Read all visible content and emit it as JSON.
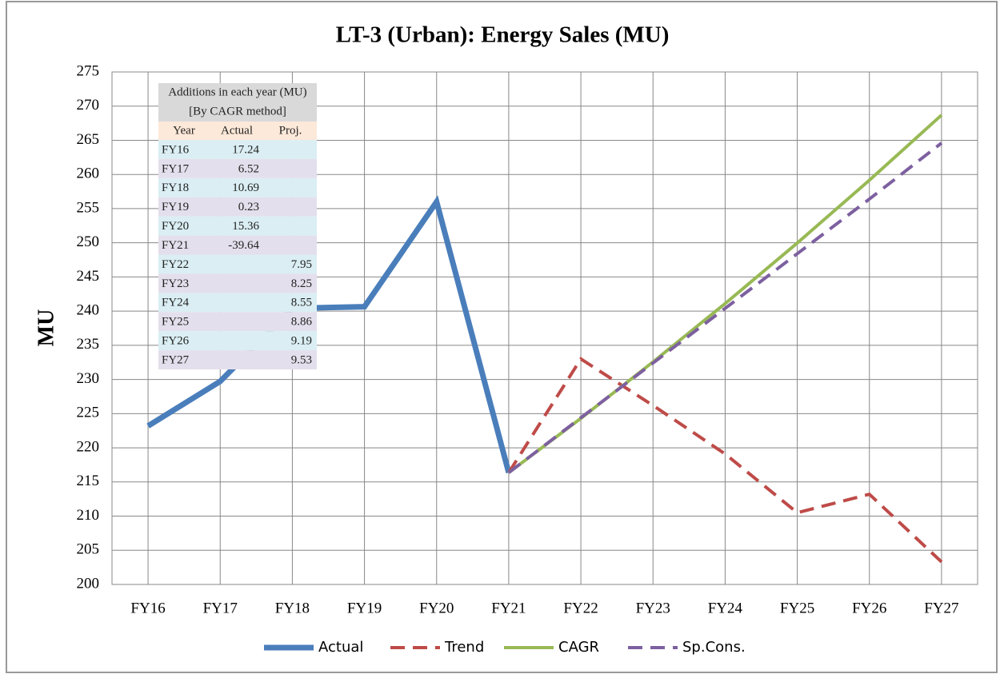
{
  "chart_data": {
    "type": "line",
    "title": "LT-3 (Urban): Energy Sales (MU)",
    "y_label": "MU",
    "categories": [
      "FY16",
      "FY17",
      "FY18",
      "FY19",
      "FY20",
      "FY21",
      "FY22",
      "FY23",
      "FY24",
      "FY25",
      "FY26",
      "FY27"
    ],
    "ylim": [
      200,
      275
    ],
    "yticks": [
      200,
      205,
      210,
      215,
      220,
      225,
      230,
      235,
      240,
      245,
      250,
      255,
      260,
      265,
      270,
      275
    ],
    "grid": true,
    "legend": "bottom",
    "series": [
      {
        "name": "Actual",
        "color": "#4a7ebb",
        "style": "solid",
        "width": 7,
        "values": [
          223.2,
          229.72,
          240.41,
          240.64,
          256.0,
          216.36,
          null,
          null,
          null,
          null,
          null,
          null
        ]
      },
      {
        "name": "Trend",
        "color": "#be4b48",
        "style": "dashed",
        "width": 4,
        "values": [
          null,
          null,
          null,
          null,
          null,
          216.36,
          233.0,
          226.2,
          219.1,
          210.5,
          213.2,
          203.3
        ]
      },
      {
        "name": "CAGR",
        "color": "#98b954",
        "style": "solid",
        "width": 4,
        "values": [
          null,
          null,
          null,
          null,
          null,
          216.36,
          224.31,
          232.56,
          241.11,
          249.97,
          259.16,
          268.69
        ]
      },
      {
        "name": "Sp.Cons.",
        "color": "#7d60a0",
        "style": "dashed",
        "width": 4,
        "values": [
          null,
          null,
          null,
          null,
          null,
          216.36,
          224.4,
          232.4,
          240.4,
          248.4,
          256.4,
          264.6
        ]
      }
    ],
    "table": {
      "title_lines": [
        "Additions in each year (MU)",
        "[By CAGR method]"
      ],
      "columns": [
        "Year",
        "Actual",
        "Proj."
      ],
      "rows": [
        [
          "FY16",
          17.24,
          null
        ],
        [
          "FY17",
          6.52,
          null
        ],
        [
          "FY18",
          10.69,
          null
        ],
        [
          "FY19",
          0.23,
          null
        ],
        [
          "FY20",
          15.36,
          null
        ],
        [
          "FY21",
          -39.64,
          null
        ],
        [
          "FY22",
          null,
          7.95
        ],
        [
          "FY23",
          null,
          8.25
        ],
        [
          "FY24",
          null,
          8.55
        ],
        [
          "FY25",
          null,
          8.86
        ],
        [
          "FY26",
          null,
          9.19
        ],
        [
          "FY27",
          null,
          9.53
        ]
      ]
    }
  }
}
